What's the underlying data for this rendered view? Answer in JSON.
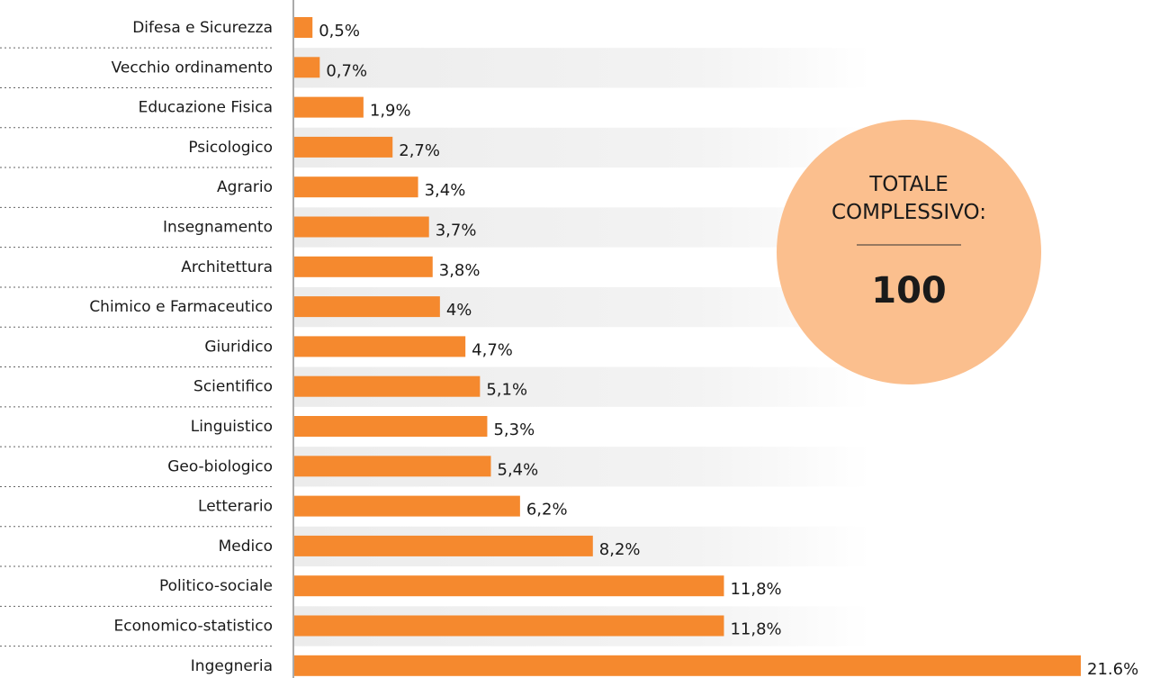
{
  "chart_data": {
    "type": "bar",
    "orientation": "horizontal",
    "categories": [
      "Difesa e Sicurezza",
      "Vecchio ordinamento",
      "Educazione Fisica",
      "Psicologico",
      "Agrario",
      "Insegnamento",
      "Architettura",
      "Chimico e Farmaceutico",
      "Giuridico",
      "Scientifico",
      "Linguistico",
      "Geo-biologico",
      "Letterario",
      "Medico",
      "Politico-sociale",
      "Economico-statistico",
      "Ingegneria"
    ],
    "values": [
      0.5,
      0.7,
      1.9,
      2.7,
      3.4,
      3.7,
      3.8,
      4,
      4.7,
      5.1,
      5.3,
      5.4,
      6.2,
      8.2,
      11.8,
      11.8,
      21.6
    ],
    "value_labels": [
      "0,5%",
      "0,7%",
      "1,9%",
      "2,7%",
      "3,4%",
      "3,7%",
      "3,8%",
      "4%",
      "4,7%",
      "5,1%",
      "5,3%",
      "5,4%",
      "6,2%",
      "8,2%",
      "11,8%",
      "11,8%",
      "21.6%"
    ],
    "color": "#f5892e",
    "xlim": [
      0,
      21.6
    ],
    "total_label": "TOTALE COMPLESSIVO:",
    "total_value": 100
  }
}
